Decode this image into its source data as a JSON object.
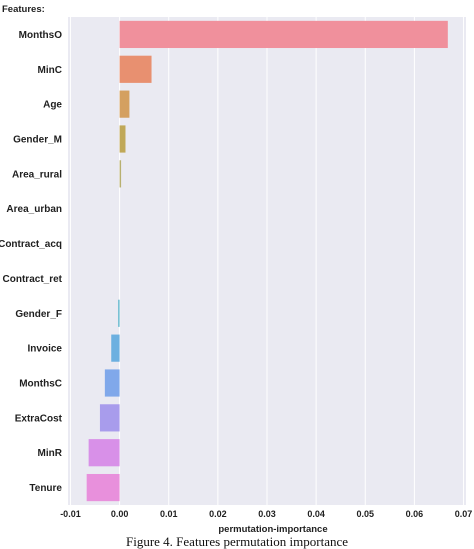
{
  "chart_data": {
    "type": "bar",
    "orientation": "horizontal",
    "title": "",
    "ylabel": "Features:",
    "xlabel": "permutation-importance",
    "xlim": [
      -0.0105,
      0.0705
    ],
    "xticks": [
      "-0.01",
      "0.00",
      "0.01",
      "0.02",
      "0.03",
      "0.04",
      "0.05",
      "0.06",
      "0.07"
    ],
    "xtick_values": [
      -0.01,
      0.0,
      0.01,
      0.02,
      0.03,
      0.04,
      0.05,
      0.06,
      0.07
    ],
    "grid": true,
    "categories": [
      "MonthsO",
      "MinC",
      "Age",
      "Gender_M",
      "Area_rural",
      "Area_urban",
      "Contract_acq",
      "Contract_ret",
      "Gender_F",
      "Invoice",
      "MonthsC",
      "ExtraCost",
      "MinR",
      "Tenure"
    ],
    "values": [
      0.0668,
      0.0065,
      0.002,
      0.0012,
      0.0003,
      0.0,
      0.0,
      0.0,
      -0.0003,
      -0.0017,
      -0.003,
      -0.004,
      -0.0063,
      -0.0067
    ],
    "colors": [
      "#f0909c",
      "#e89070",
      "#d4a060",
      "#c0a858",
      "#b8b070",
      "#a8b878",
      "#90bc88",
      "#80c0a0",
      "#6cbcd0",
      "#6cb0e0",
      "#80a8ea",
      "#a89cec",
      "#d890e8",
      "#e890dc"
    ],
    "background": "#eaeaf2",
    "caption": "Figure 4. Features permutation importance"
  }
}
